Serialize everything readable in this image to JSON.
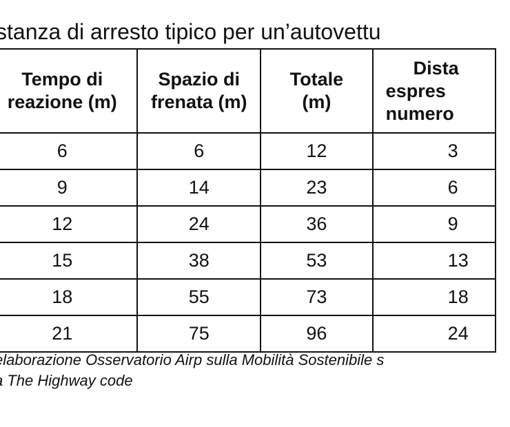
{
  "title": "stanza di arresto tipico per un’autovettu",
  "table": {
    "headers": [
      [
        "Tempo di",
        "reazione (m)"
      ],
      [
        "Spazio di",
        "frenata (m)"
      ],
      [
        "Totale",
        "(m)"
      ],
      [
        "Dista",
        "espres",
        "numero"
      ]
    ],
    "rows": [
      [
        "6",
        "6",
        "12",
        "3"
      ],
      [
        "9",
        "14",
        "23",
        "6"
      ],
      [
        "12",
        "24",
        "36",
        "9"
      ],
      [
        "15",
        "38",
        "53",
        "13"
      ],
      [
        "18",
        "55",
        "73",
        "18"
      ],
      [
        "21",
        "75",
        "96",
        "24"
      ]
    ]
  },
  "footnote": {
    "line1": "elaborazione Osservatorio Airp sulla Mobilità Sostenibile s",
    "line2": "a The Highway code"
  }
}
